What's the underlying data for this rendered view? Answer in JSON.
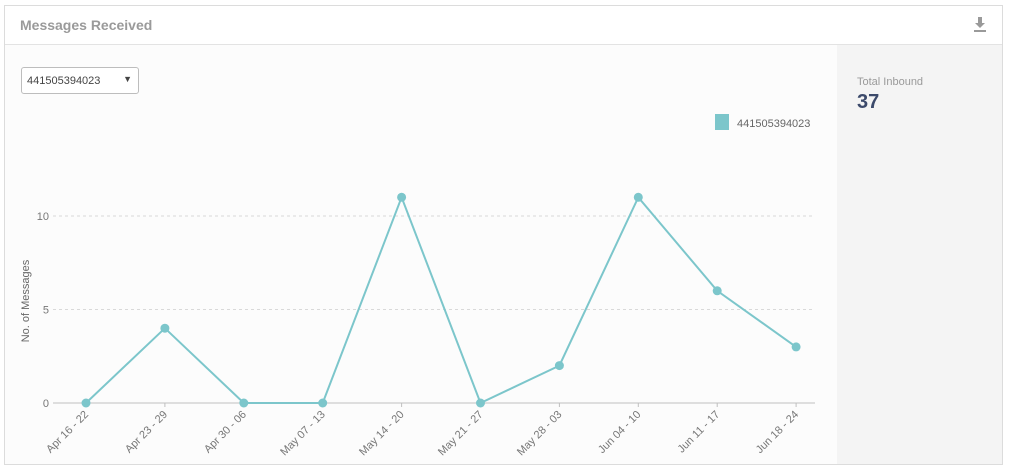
{
  "card": {
    "title": "Messages Received",
    "download_icon": "download-icon"
  },
  "filter": {
    "selected": "441505394023",
    "arrow": "▼"
  },
  "summary": {
    "label": "Total Inbound",
    "value": "37"
  },
  "colors": {
    "series": "#7cc6cb",
    "grid": "#d9d9d9",
    "axis": "#bfbfbf",
    "stat_value": "#3c4a6b"
  },
  "chart_data": {
    "type": "line",
    "categories": [
      "Apr 16 - 22",
      "Apr 23 - 29",
      "Apr 30 - 06",
      "May 07 - 13",
      "May 14 - 20",
      "May 21 - 27",
      "May 28 - 03",
      "Jun 04 - 10",
      "Jun 11 - 17",
      "Jun 18 - 24"
    ],
    "series": [
      {
        "name": "441505394023",
        "values": [
          0,
          4,
          0,
          0,
          11,
          0,
          2,
          11,
          6,
          3
        ]
      }
    ],
    "ylabel": "No. of Messages",
    "xlabel": "",
    "ylim": [
      0,
      11
    ],
    "yticks": [
      0,
      5,
      10
    ],
    "grid": true,
    "legend": "top-right"
  }
}
